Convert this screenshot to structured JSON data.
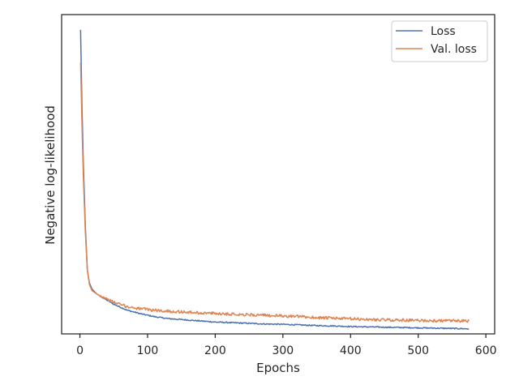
{
  "chart_data": {
    "type": "line",
    "xlabel": "Epochs",
    "ylabel": "Negative log-likelihood",
    "xlim": [
      -27,
      613
    ],
    "ylim": [
      0,
      1
    ],
    "xticks": [
      0,
      100,
      200,
      300,
      400,
      500,
      600
    ],
    "y_tick_labels_shown": false,
    "grid": false,
    "legend_position": "upper right",
    "series": [
      {
        "name": "Loss",
        "color": "#4c72b0",
        "x": [
          1,
          3,
          5,
          8,
          11,
          14,
          18,
          25,
          35,
          50,
          70,
          90,
          110,
          130,
          150,
          175,
          200,
          225,
          250,
          275,
          300,
          325,
          350,
          375,
          400,
          425,
          450,
          475,
          500,
          525,
          550,
          575
        ],
        "y": [
          0.952,
          0.72,
          0.54,
          0.34,
          0.2,
          0.16,
          0.14,
          0.125,
          0.112,
          0.093,
          0.074,
          0.063,
          0.054,
          0.048,
          0.045,
          0.041,
          0.037,
          0.035,
          0.033,
          0.031,
          0.03,
          0.028,
          0.026,
          0.025,
          0.023,
          0.022,
          0.021,
          0.02,
          0.019,
          0.018,
          0.017,
          0.016
        ]
      },
      {
        "name": "Val. loss",
        "color": "#dd8452",
        "x": [
          1,
          3,
          5,
          8,
          11,
          14,
          18,
          25,
          35,
          50,
          70,
          90,
          110,
          130,
          150,
          175,
          200,
          225,
          250,
          275,
          300,
          325,
          350,
          375,
          400,
          425,
          450,
          475,
          500,
          525,
          550,
          575
        ],
        "y": [
          0.85,
          0.66,
          0.5,
          0.32,
          0.2,
          0.155,
          0.135,
          0.125,
          0.114,
          0.099,
          0.085,
          0.079,
          0.074,
          0.071,
          0.069,
          0.066,
          0.064,
          0.062,
          0.06,
          0.058,
          0.056,
          0.054,
          0.051,
          0.049,
          0.047,
          0.045,
          0.044,
          0.043,
          0.042,
          0.041,
          0.041,
          0.04
        ]
      }
    ]
  }
}
